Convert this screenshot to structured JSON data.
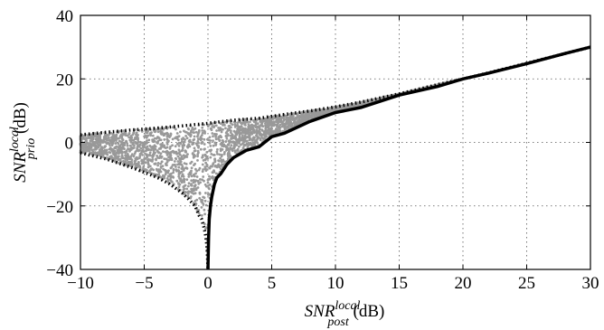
{
  "chart_data": {
    "type": "scatter",
    "title": "",
    "xlabel": {
      "base": "SNR",
      "sup": "local",
      "sub": "post",
      "unit": " (dB)"
    },
    "ylabel": {
      "base": "SNR",
      "sup": "local",
      "sub": "prio",
      "unit": " (dB)"
    },
    "xlim": [
      -10,
      30
    ],
    "ylim": [
      -40,
      40
    ],
    "xticks": [
      -10,
      -5,
      0,
      5,
      10,
      15,
      20,
      25,
      30
    ],
    "yticks": [
      -40,
      -20,
      0,
      20,
      40
    ],
    "grid": true,
    "colors": {
      "scatter": "#999999",
      "solid": "#000000",
      "dotted": "#000000",
      "grid": "#555555"
    },
    "series": [
      {
        "style": "scatter-region",
        "lower_bound_x": [
          0,
          0.05,
          0.1,
          0.2,
          0.3,
          0.5,
          0.7,
          1.0,
          1.5,
          2,
          3,
          4,
          5,
          6,
          8,
          10,
          12,
          15,
          18,
          20,
          22,
          25,
          28,
          30
        ],
        "lower_bound_y": [
          -40,
          -29.9,
          -24.2,
          -19.9,
          -17.2,
          -13.2,
          -11.1,
          -9.9,
          -6.9,
          -4.8,
          -2.5,
          -1.4,
          1.8,
          2.9,
          6.6,
          9.4,
          11.0,
          14.9,
          17.6,
          20.0,
          21.8,
          24.8,
          28.0,
          30.0
        ],
        "upper_bound_x": [
          -10,
          -8,
          -6,
          -4,
          -2,
          0,
          2,
          4,
          6,
          8,
          10,
          12,
          15,
          18,
          20,
          22,
          25,
          28,
          30
        ],
        "upper_bound_y": [
          2.4,
          3.2,
          3.9,
          4.5,
          5.2,
          6.0,
          7.0,
          7.6,
          8.8,
          9.9,
          11.2,
          12.7,
          15.3,
          18.2,
          20.0,
          21.9,
          24.9,
          28.0,
          30.0
        ]
      },
      {
        "style": "solid",
        "x": [
          0,
          0.05,
          0.1,
          0.2,
          0.3,
          0.5,
          0.7,
          1.0,
          1.5,
          2,
          3,
          4,
          5,
          6,
          8,
          10,
          12,
          15,
          18,
          20,
          22,
          25,
          28,
          30
        ],
        "y": [
          -40,
          -29.9,
          -24.2,
          -19.9,
          -17.2,
          -13.2,
          -11.1,
          -9.9,
          -6.9,
          -4.8,
          -2.5,
          -1.4,
          1.8,
          2.9,
          6.6,
          9.4,
          11.0,
          14.9,
          17.6,
          20.0,
          21.8,
          24.8,
          28.0,
          30.0
        ]
      },
      {
        "style": "dotted-upper",
        "x": [
          -10,
          -8,
          -6,
          -4,
          -2,
          0,
          2,
          4,
          6,
          8,
          10,
          12,
          15,
          18,
          20,
          22,
          25,
          28,
          30
        ],
        "y": [
          2.4,
          3.2,
          3.9,
          4.5,
          5.2,
          6.0,
          7.0,
          7.6,
          8.8,
          9.9,
          11.2,
          12.7,
          15.3,
          18.2,
          20.0,
          21.9,
          24.9,
          28.0,
          30.0
        ]
      },
      {
        "style": "dotted-lower",
        "x": [
          -10,
          -8,
          -6,
          -4,
          -3,
          -2,
          -1.5,
          -1,
          -0.7,
          -0.5,
          -0.3,
          -0.2,
          -0.1,
          -0.05,
          0
        ],
        "y": [
          -3.3,
          -5.2,
          -7.9,
          -11.0,
          -13.1,
          -16.0,
          -17.9,
          -20.1,
          -23.0,
          -24.1,
          -27.0,
          -29.0,
          -32.0,
          -35.0,
          -40.0
        ]
      }
    ]
  }
}
